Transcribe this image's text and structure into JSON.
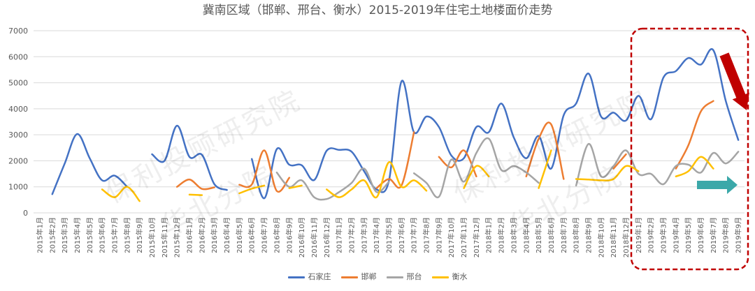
{
  "chart_data": {
    "type": "line",
    "title": "冀南区域（邯郸、邢台、衡水）2015-2019年住宅土地楼面价走势",
    "categories": [
      "2015年1月",
      "2015年2月",
      "2015年3月",
      "2015年4月",
      "2015年5月",
      "2015年6月",
      "2015年7月",
      "2015年8月",
      "2015年9月",
      "2015年10月",
      "2015年11月",
      "2015年12月",
      "2016年1月",
      "2016年2月",
      "2016年3月",
      "2016年4月",
      "2016年5月",
      "2016年6月",
      "2016年7月",
      "2016年8月",
      "2016年9月",
      "2016年10月",
      "2016年11月",
      "2016年12月",
      "2017年1月",
      "2017年2月",
      "2017年3月",
      "2017年4月",
      "2017年5月",
      "2017年6月",
      "2017年7月",
      "2017年8月",
      "2017年9月",
      "2017年10月",
      "2017年11月",
      "2017年12月",
      "2018年1月",
      "2018年2月",
      "2018年3月",
      "2018年4月",
      "2018年5月",
      "2018年6月",
      "2018年7月",
      "2018年8月",
      "2018年9月",
      "2018年10月",
      "2018年11月",
      "2018年12月",
      "2019年1月",
      "2019年2月",
      "2019年3月",
      "2019年4月",
      "2019年5月",
      "2019年6月",
      "2019年7月",
      "2019年8月",
      "2019年9月"
    ],
    "series": [
      {
        "name": "石家庄",
        "color": "#4472c4",
        "values": [
          null,
          720,
          1900,
          3030,
          2100,
          1250,
          1430,
          1000,
          null,
          2250,
          2000,
          3350,
          2150,
          2230,
          1100,
          880,
          null,
          2070,
          560,
          2450,
          1850,
          1830,
          1260,
          2390,
          2420,
          2350,
          1600,
          900,
          1250,
          5050,
          3100,
          3700,
          3300,
          2200,
          2100,
          3300,
          3100,
          4200,
          2900,
          2100,
          2950,
          1700,
          3750,
          4200,
          5350,
          3700,
          3850,
          3550,
          4500,
          3600,
          5200,
          5450,
          5950,
          5700,
          6250,
          4300,
          2800
        ]
      },
      {
        "name": "邯郸",
        "color": "#ed7d31",
        "values": [
          null,
          null,
          null,
          null,
          null,
          null,
          null,
          null,
          null,
          null,
          null,
          1000,
          1280,
          920,
          980,
          null,
          1080,
          1090,
          2400,
          840,
          1350,
          null,
          null,
          null,
          null,
          null,
          null,
          950,
          1300,
          1050,
          3100,
          null,
          2150,
          1750,
          2400,
          1400,
          null,
          null,
          null,
          1400,
          2850,
          3400,
          1300,
          null,
          null,
          null,
          1700,
          2250,
          null,
          null,
          null,
          1700,
          2600,
          3900,
          4300,
          null,
          null
        ]
      },
      {
        "name": "邢台",
        "color": "#a5a5a5",
        "values": [
          null,
          null,
          null,
          null,
          null,
          null,
          null,
          null,
          null,
          null,
          null,
          null,
          null,
          null,
          null,
          null,
          null,
          null,
          null,
          1550,
          1000,
          1250,
          600,
          530,
          800,
          1150,
          1700,
          800,
          1200,
          null,
          1520,
          1150,
          620,
          2050,
          1200,
          2300,
          2850,
          1650,
          1800,
          1550,
          1150,
          null,
          null,
          1050,
          2650,
          1400,
          1800,
          2400,
          1500,
          1500,
          1100,
          1800,
          1850,
          1550,
          2300,
          1900,
          2350
        ]
      },
      {
        "name": "衡水",
        "color": "#ffc000",
        "values": [
          null,
          null,
          null,
          null,
          null,
          900,
          600,
          1000,
          450,
          null,
          null,
          null,
          700,
          680,
          null,
          null,
          750,
          930,
          1050,
          null,
          950,
          1050,
          null,
          900,
          600,
          900,
          1250,
          600,
          1950,
          1000,
          1250,
          850,
          null,
          null,
          950,
          1800,
          1400,
          null,
          null,
          null,
          950,
          2400,
          null,
          1300,
          1280,
          1250,
          1300,
          1800,
          1600,
          null,
          null,
          1400,
          1600,
          2150,
          1700,
          null,
          null
        ]
      }
    ],
    "ylim": [
      0,
      7000
    ],
    "yticks": [
      0,
      1000,
      2000,
      3000,
      4000,
      5000,
      6000,
      7000
    ],
    "smooth": true,
    "grid": true,
    "legend_position": "bottom"
  },
  "annotations": {
    "highlight_box_color": "#c00000",
    "down_arrow_color": "#c00000",
    "right_arrow_color": "#3ba8a9"
  },
  "watermark": {
    "line1": "保利投顾研究院",
    "line2": "华北分院"
  }
}
